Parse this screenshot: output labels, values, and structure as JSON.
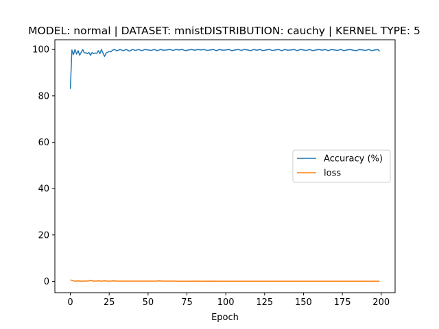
{
  "chart_data": {
    "type": "line",
    "title": "MODEL: normal | DATASET: mnistDISTRIBUTION: cauchy | KERNEL TYPE: 5",
    "xlabel": "Epoch",
    "ylabel": "",
    "xlim": [
      -9.95,
      208.95
    ],
    "ylim": [
      -4.9,
      104.2
    ],
    "x_ticks": [
      0,
      25,
      50,
      75,
      100,
      125,
      150,
      175,
      200
    ],
    "y_ticks": [
      0,
      20,
      40,
      60,
      80,
      100
    ],
    "grid": false,
    "legend_position": "center-right",
    "series": [
      {
        "name": "Accuracy (%)",
        "color": "#1f77b4",
        "x": [
          0,
          1,
          2,
          3,
          4,
          5,
          6,
          7,
          8,
          9,
          10,
          11,
          12,
          13,
          14,
          15,
          16,
          17,
          18,
          19,
          20,
          21,
          22,
          23,
          24,
          25,
          26,
          27,
          28,
          29,
          30,
          32,
          34,
          36,
          38,
          40,
          42,
          44,
          46,
          48,
          50,
          52,
          54,
          56,
          58,
          60,
          62,
          64,
          66,
          68,
          70,
          72,
          74,
          76,
          78,
          80,
          82,
          84,
          86,
          88,
          90,
          92,
          94,
          96,
          98,
          100,
          102,
          104,
          106,
          108,
          110,
          112,
          114,
          116,
          118,
          120,
          122,
          124,
          126,
          128,
          130,
          132,
          134,
          136,
          138,
          140,
          142,
          144,
          146,
          148,
          150,
          152,
          154,
          156,
          158,
          160,
          162,
          164,
          166,
          168,
          170,
          172,
          174,
          176,
          178,
          180,
          182,
          184,
          186,
          188,
          190,
          192,
          194,
          196,
          198,
          199
        ],
        "values": [
          83,
          99.8,
          97.8,
          100,
          98,
          99.5,
          97.5,
          98.8,
          100,
          98.5,
          98.6,
          98.2,
          98.7,
          97.5,
          98.7,
          98.2,
          98.5,
          98.3,
          99.5,
          98.2,
          100,
          98.5,
          97,
          98.5,
          98.8,
          99.2,
          99,
          99.6,
          100,
          99.8,
          99.4,
          100,
          99.5,
          100,
          99.3,
          100,
          99.6,
          100,
          99.5,
          100,
          99.8,
          99.6,
          100,
          99.5,
          100,
          99.7,
          99.8,
          100,
          99.6,
          100,
          99.8,
          100,
          99.5,
          99.8,
          100,
          99.7,
          100,
          99.8,
          100,
          99.6,
          99.8,
          100,
          99.5,
          100,
          99.7,
          99.8,
          100,
          99.5,
          99.8,
          100,
          99.6,
          100,
          99.8,
          99.5,
          100,
          99.7,
          100,
          99.5,
          99.8,
          100,
          99.6,
          99.8,
          100,
          99.5,
          100,
          99.7,
          99.8,
          100,
          99.5,
          100,
          99.8,
          99.6,
          100,
          99.5,
          99.8,
          100,
          99.7,
          100,
          99.5,
          100,
          99.8,
          99.6,
          100,
          99.5,
          99.8,
          100,
          99.7,
          99.5,
          100,
          99.8,
          99.6,
          100,
          99.5,
          99.8,
          100,
          99.2
        ]
      },
      {
        "name": "loss",
        "color": "#ff7f0e",
        "x": [
          0,
          1,
          2,
          3,
          4,
          5,
          6,
          8,
          10,
          12,
          13,
          14,
          16,
          18,
          20,
          22,
          24,
          26,
          28,
          30,
          35,
          40,
          45,
          50,
          55,
          57,
          60,
          65,
          70,
          75,
          80,
          85,
          90,
          95,
          100,
          105,
          110,
          115,
          120,
          125,
          130,
          135,
          140,
          145,
          150,
          155,
          160,
          165,
          170,
          175,
          180,
          185,
          190,
          195,
          199
        ],
        "values": [
          0.6,
          0.4,
          0.2,
          0.1,
          0.1,
          0.2,
          0.1,
          0.1,
          0.1,
          0.2,
          0.4,
          0.2,
          0.1,
          0.2,
          0.1,
          0.2,
          0.1,
          0.1,
          0.2,
          0.1,
          0.1,
          0.1,
          0.1,
          0.1,
          0.1,
          0.2,
          0.1,
          0.1,
          0.05,
          0.05,
          0.1,
          0.05,
          0.1,
          0.05,
          0.05,
          0.05,
          0.05,
          0.05,
          0.05,
          0.05,
          0.05,
          0.05,
          0.05,
          0.05,
          0.05,
          0.05,
          0.05,
          0.05,
          0.05,
          0.05,
          0.05,
          0.05,
          0.05,
          0.05,
          0.05
        ]
      }
    ]
  }
}
